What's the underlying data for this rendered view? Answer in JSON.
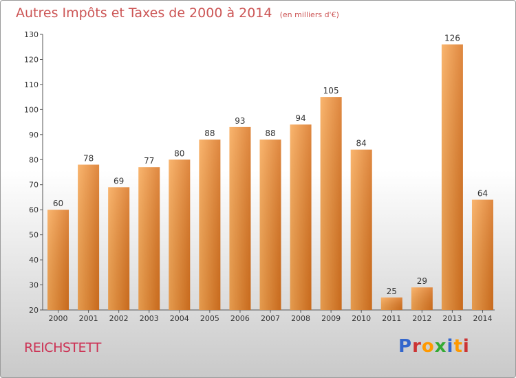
{
  "header": {
    "title": "Autres Impôts et Taxes de 2000 à 2014",
    "subtitle": "(en milliers d'€)"
  },
  "footer": {
    "commune": "REICHSTETT",
    "logo_text": "Proxiti",
    "logo_colors": [
      "#3366cc",
      "#cc3333",
      "#ff9900",
      "#33aa33",
      "#3366cc",
      "#ff9900",
      "#cc3333"
    ]
  },
  "colors": {
    "bar_light": "#f8a855",
    "bar_dark": "#d9731f",
    "title": "#cc5555",
    "commune": "#cc3355"
  },
  "chart_data": {
    "type": "bar",
    "categories": [
      "2000",
      "2001",
      "2002",
      "2003",
      "2004",
      "2005",
      "2006",
      "2007",
      "2008",
      "2009",
      "2010",
      "2011",
      "2012",
      "2013",
      "2014"
    ],
    "values": [
      60,
      78,
      69,
      77,
      80,
      88,
      93,
      88,
      94,
      105,
      84,
      25,
      29,
      126,
      64
    ],
    "title": "Autres Impôts et Taxes de 2000 à 2014",
    "xlabel": "",
    "ylabel": "",
    "ylim": [
      20,
      130
    ],
    "yticks": [
      20,
      30,
      40,
      50,
      60,
      70,
      80,
      90,
      100,
      110,
      120,
      130
    ],
    "grid": false,
    "legend": "none"
  }
}
